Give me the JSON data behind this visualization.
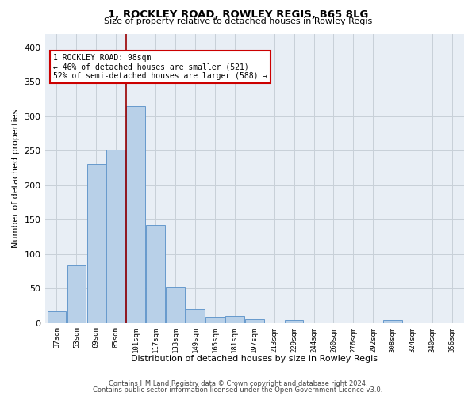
{
  "title1": "1, ROCKLEY ROAD, ROWLEY REGIS, B65 8LG",
  "title2": "Size of property relative to detached houses in Rowley Regis",
  "xlabel": "Distribution of detached houses by size in Rowley Regis",
  "ylabel": "Number of detached properties",
  "footnote1": "Contains HM Land Registry data © Crown copyright and database right 2024.",
  "footnote2": "Contains public sector information licensed under the Open Government Licence v3.0.",
  "bar_labels": [
    "37sqm",
    "53sqm",
    "69sqm",
    "85sqm",
    "101sqm",
    "117sqm",
    "133sqm",
    "149sqm",
    "165sqm",
    "181sqm",
    "197sqm",
    "213sqm",
    "229sqm",
    "244sqm",
    "260sqm",
    "276sqm",
    "292sqm",
    "308sqm",
    "324sqm",
    "340sqm",
    "356sqm"
  ],
  "bar_values": [
    17,
    84,
    231,
    251,
    315,
    142,
    51,
    20,
    9,
    10,
    5,
    0,
    4,
    0,
    0,
    0,
    0,
    4,
    0,
    0,
    0
  ],
  "bar_color": "#b8d0e8",
  "bar_edge_color": "#6699cc",
  "grid_color": "#c8d0d8",
  "bg_color": "#e8eef5",
  "red_line_index": 3.5,
  "annotation_text1": "1 ROCKLEY ROAD: 98sqm",
  "annotation_text2": "← 46% of detached houses are smaller (521)",
  "annotation_text3": "52% of semi-detached houses are larger (588) →",
  "annotation_box_facecolor": "#ffffff",
  "annotation_border_color": "#cc0000",
  "ylim": [
    0,
    420
  ],
  "yticks": [
    0,
    50,
    100,
    150,
    200,
    250,
    300,
    350,
    400
  ]
}
